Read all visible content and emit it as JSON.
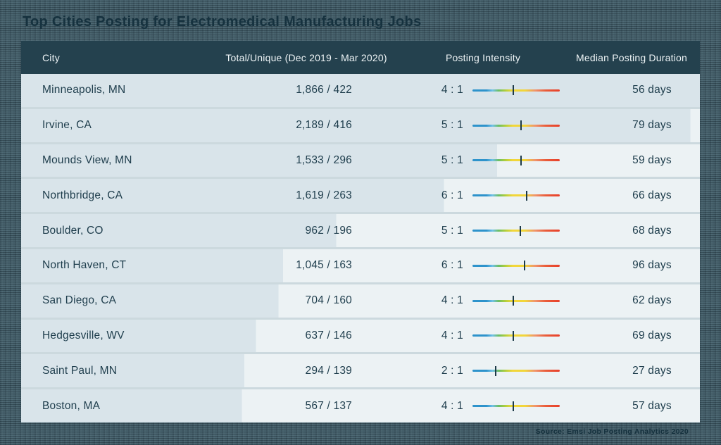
{
  "page": {
    "title": "Top Cities Posting for Electromedical Manufacturing Jobs",
    "source": "Source: Emsi Job Posting Analytics 2020"
  },
  "colors": {
    "page_background": "#46606b",
    "title_text": "#16323f",
    "header_bg": "#24414e",
    "header_text": "#eef4f6",
    "row_unique_bar_bg": "#d9e4ea",
    "row_light_bg": "#ecf2f4",
    "row_divider": "#ccd9de",
    "cell_text": "#1e3d4c",
    "intensity_marker": "#1d3a47",
    "intensity_gradient": [
      "#2e93cb",
      "#72c2e6",
      "#6cbf62",
      "#b5cf3a",
      "#f2d63a",
      "#f0936c",
      "#e8402a"
    ]
  },
  "chart_data": {
    "type": "table",
    "title": "Top Cities Posting for Electromedical Manufacturing Jobs",
    "columns": [
      "City",
      "Total/Unique (Dec 2019 - Mar 2020)",
      "Posting Intensity",
      "Median Posting Duration"
    ],
    "layout_hints": "Row background shading width is proportional to unique postings (max 422 spans full row); tick mark on blue-to-red gradient encodes posting intensity ratio",
    "rows": [
      {
        "city": "Minneapolis, MN",
        "total_unique": "1,866 / 422",
        "total": 1866,
        "unique": 422,
        "intensity_ratio": "4 : 1",
        "intensity": 4,
        "median_duration": "56 days",
        "duration_days": 56,
        "bar_pct": "100%",
        "marker_pct": "47%"
      },
      {
        "city": "Irvine, CA",
        "total_unique": "2,189 / 416",
        "total": 2189,
        "unique": 416,
        "intensity_ratio": "5 : 1",
        "intensity": 5,
        "median_duration": "79 days",
        "duration_days": 79,
        "bar_pct": "98.6%",
        "marker_pct": "56%"
      },
      {
        "city": "Mounds View, MN",
        "total_unique": "1,533 / 296",
        "total": 1533,
        "unique": 296,
        "intensity_ratio": "5 : 1",
        "intensity": 5,
        "median_duration": "59 days",
        "duration_days": 59,
        "bar_pct": "70.1%",
        "marker_pct": "56%"
      },
      {
        "city": "Northbridge, CA",
        "total_unique": "1,619 / 263",
        "total": 1619,
        "unique": 263,
        "intensity_ratio": "6 : 1",
        "intensity": 6,
        "median_duration": "66 days",
        "duration_days": 66,
        "bar_pct": "62.3%",
        "marker_pct": "62%"
      },
      {
        "city": "Boulder, CO",
        "total_unique": "962 / 196",
        "total": 962,
        "unique": 196,
        "intensity_ratio": "5 : 1",
        "intensity": 5,
        "median_duration": "68 days",
        "duration_days": 68,
        "bar_pct": "46.4%",
        "marker_pct": "55%"
      },
      {
        "city": "North Haven, CT",
        "total_unique": "1,045 / 163",
        "total": 1045,
        "unique": 163,
        "intensity_ratio": "6 : 1",
        "intensity": 6,
        "median_duration": "96 days",
        "duration_days": 96,
        "bar_pct": "38.6%",
        "marker_pct": "60%"
      },
      {
        "city": "San Diego, CA",
        "total_unique": "704 / 160",
        "total": 704,
        "unique": 160,
        "intensity_ratio": "4 : 1",
        "intensity": 4,
        "median_duration": "62 days",
        "duration_days": 62,
        "bar_pct": "37.9%",
        "marker_pct": "47%"
      },
      {
        "city": "Hedgesville, WV",
        "total_unique": "637 / 146",
        "total": 637,
        "unique": 146,
        "intensity_ratio": "4 : 1",
        "intensity": 4,
        "median_duration": "69 days",
        "duration_days": 69,
        "bar_pct": "34.6%",
        "marker_pct": "47%"
      },
      {
        "city": "Saint Paul, MN",
        "total_unique": "294 / 139",
        "total": 294,
        "unique": 139,
        "intensity_ratio": "2 : 1",
        "intensity": 2,
        "median_duration": "27 days",
        "duration_days": 27,
        "bar_pct": "32.9%",
        "marker_pct": "27%"
      },
      {
        "city": "Boston, MA",
        "total_unique": "567 / 137",
        "total": 567,
        "unique": 137,
        "intensity_ratio": "4 : 1",
        "intensity": 4,
        "median_duration": "57 days",
        "duration_days": 57,
        "bar_pct": "32.5%",
        "marker_pct": "47%"
      }
    ]
  }
}
